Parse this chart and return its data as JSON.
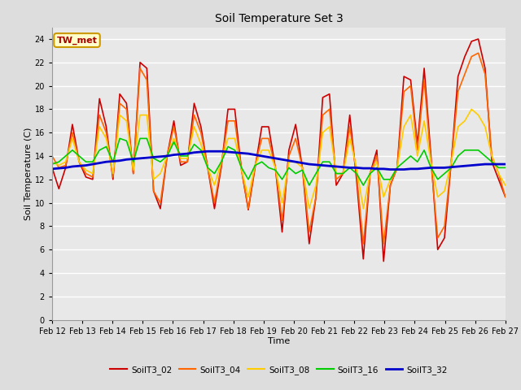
{
  "title": "Soil Temperature Set 3",
  "xlabel": "Time",
  "ylabel": "Soil Temperature (C)",
  "ylim": [
    0,
    25
  ],
  "yticks": [
    0,
    2,
    4,
    6,
    8,
    10,
    12,
    14,
    16,
    18,
    20,
    22,
    24
  ],
  "x_labels": [
    "Feb 12",
    "Feb 13",
    "Feb 14",
    "Feb 15",
    "Feb 16",
    "Feb 17",
    "Feb 18",
    "Feb 19",
    "Feb 20",
    "Feb 21",
    "Feb 22",
    "Feb 23",
    "Feb 24",
    "Feb 25",
    "Feb 26",
    "Feb 27"
  ],
  "annotation_text": "TW_met",
  "annotation_color": "#aa0000",
  "annotation_bg": "#ffffcc",
  "annotation_border": "#cc9900",
  "series": {
    "SoilT3_02": {
      "color": "#cc0000",
      "linewidth": 1.2,
      "values": [
        13.0,
        11.2,
        13.0,
        16.7,
        13.5,
        12.2,
        12.0,
        18.9,
        16.5,
        12.0,
        19.3,
        18.5,
        12.5,
        22.0,
        21.5,
        11.0,
        9.5,
        14.0,
        17.0,
        13.2,
        13.5,
        18.5,
        16.5,
        13.0,
        9.5,
        13.0,
        18.0,
        18.0,
        12.8,
        9.4,
        13.0,
        16.5,
        16.5,
        13.0,
        7.5,
        14.5,
        16.7,
        13.0,
        6.5,
        10.5,
        19.0,
        19.3,
        11.5,
        12.5,
        17.5,
        12.0,
        5.2,
        12.5,
        14.5,
        5.0,
        11.5,
        13.0,
        20.8,
        20.5,
        15.0,
        21.5,
        14.0,
        6.0,
        7.0,
        13.5,
        20.8,
        22.5,
        23.8,
        24.0,
        21.5,
        13.5,
        12.0,
        10.5
      ]
    },
    "SoilT3_04": {
      "color": "#ff6600",
      "linewidth": 1.2,
      "values": [
        14.0,
        13.0,
        13.2,
        16.0,
        13.5,
        12.5,
        12.2,
        17.5,
        16.0,
        12.2,
        18.5,
        18.0,
        12.5,
        21.5,
        20.5,
        11.0,
        10.0,
        14.0,
        16.5,
        13.5,
        13.5,
        17.5,
        16.0,
        13.0,
        10.0,
        13.2,
        17.0,
        17.0,
        12.8,
        9.5,
        13.2,
        15.5,
        15.5,
        13.0,
        8.5,
        14.0,
        15.5,
        13.0,
        7.5,
        10.5,
        17.5,
        18.0,
        12.0,
        12.5,
        16.5,
        12.5,
        6.5,
        12.5,
        14.0,
        6.5,
        11.5,
        13.0,
        19.5,
        20.0,
        14.5,
        20.5,
        13.5,
        7.0,
        8.0,
        13.5,
        19.5,
        21.0,
        22.5,
        22.8,
        21.0,
        14.0,
        12.5,
        10.5
      ]
    },
    "SoilT3_08": {
      "color": "#ffcc00",
      "linewidth": 1.2,
      "values": [
        13.5,
        13.2,
        13.5,
        15.5,
        13.5,
        12.8,
        12.5,
        16.5,
        15.5,
        12.5,
        17.5,
        17.0,
        12.8,
        17.5,
        17.5,
        12.0,
        12.5,
        14.0,
        15.5,
        13.8,
        13.8,
        16.5,
        15.0,
        13.0,
        11.5,
        13.5,
        15.5,
        15.5,
        12.8,
        10.5,
        13.2,
        14.5,
        14.5,
        13.0,
        10.0,
        13.5,
        13.5,
        13.0,
        9.5,
        11.5,
        16.0,
        16.5,
        12.5,
        12.5,
        15.5,
        13.0,
        9.5,
        12.5,
        13.5,
        10.5,
        12.0,
        13.0,
        16.5,
        17.5,
        14.0,
        17.0,
        13.5,
        10.5,
        11.0,
        13.5,
        16.5,
        17.0,
        18.0,
        17.5,
        16.5,
        14.0,
        12.5,
        11.5
      ]
    },
    "SoilT3_16": {
      "color": "#00cc00",
      "linewidth": 1.2,
      "values": [
        13.3,
        13.5,
        14.0,
        14.5,
        14.0,
        13.5,
        13.5,
        14.5,
        14.8,
        13.5,
        15.5,
        15.3,
        13.5,
        15.5,
        15.5,
        13.8,
        13.5,
        14.0,
        15.2,
        14.0,
        14.0,
        15.0,
        14.5,
        13.0,
        12.5,
        13.5,
        14.8,
        14.5,
        13.0,
        12.0,
        13.2,
        13.5,
        13.0,
        12.8,
        12.0,
        13.0,
        12.5,
        12.8,
        11.5,
        12.5,
        13.5,
        13.5,
        12.5,
        12.5,
        13.0,
        12.5,
        11.5,
        12.5,
        13.0,
        12.0,
        12.0,
        13.0,
        13.5,
        14.0,
        13.5,
        14.5,
        13.0,
        12.0,
        12.5,
        13.0,
        14.0,
        14.5,
        14.5,
        14.5,
        14.0,
        13.5,
        13.0,
        13.0
      ]
    },
    "SoilT3_32": {
      "color": "#0000cc",
      "linewidth": 2.0,
      "values": [
        12.9,
        12.95,
        13.0,
        13.1,
        13.15,
        13.2,
        13.3,
        13.4,
        13.5,
        13.55,
        13.6,
        13.7,
        13.75,
        13.8,
        13.85,
        13.9,
        13.95,
        14.0,
        14.1,
        14.15,
        14.2,
        14.3,
        14.35,
        14.4,
        14.4,
        14.4,
        14.35,
        14.3,
        14.25,
        14.2,
        14.1,
        14.0,
        13.9,
        13.8,
        13.7,
        13.6,
        13.5,
        13.4,
        13.3,
        13.25,
        13.2,
        13.15,
        13.1,
        13.05,
        13.0,
        13.0,
        12.95,
        12.95,
        12.9,
        12.9,
        12.85,
        12.85,
        12.85,
        12.9,
        12.9,
        12.95,
        13.0,
        13.0,
        13.0,
        13.05,
        13.1,
        13.15,
        13.2,
        13.25,
        13.3,
        13.3,
        13.3,
        13.3
      ]
    }
  },
  "bg_color": "#dddddd",
  "plot_bg_color": "#e8e8e8",
  "grid_color": "#ffffff",
  "n_points": 68,
  "days": 15
}
